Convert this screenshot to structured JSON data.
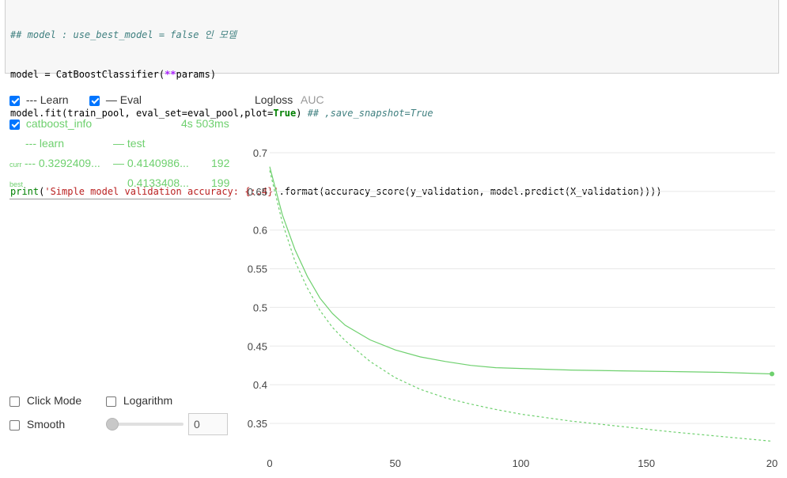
{
  "code": {
    "line1_comment": "## model : use_best_model = false 인 모델",
    "line2_a": "model = CatBoostClassifier(",
    "line2_op": "**",
    "line2_b": "params)",
    "line3_a": "model.fit(train_pool, eval_set=eval_pool,plot=",
    "line3_kw": "True",
    "line3_b": ") ",
    "line3_comment": "## ,save_snapshot=True",
    "line5_fn": "print",
    "line5_str": "'Simple model validation accuracy: {:.4}'",
    "line5_rest": ".format(accuracy_score(y_validation, model.predict(X_validation))))"
  },
  "legend": {
    "learn_label": "--- Learn",
    "eval_label": "— Eval",
    "learn_checked": true,
    "eval_checked": true
  },
  "run": {
    "name": "catboost_info",
    "time": "4s 503ms",
    "checked": true,
    "learn_header": "--- learn",
    "test_header": "— test",
    "curr_label": "curr",
    "curr_learn": "--- 0.3292409...",
    "curr_test": "— 0.4140986...",
    "curr_iter": "192",
    "best_label": "best",
    "best_test": "0.4133408...",
    "best_iter": "199"
  },
  "controls": {
    "click_mode": "Click Mode",
    "logarithm": "Logarithm",
    "smooth": "Smooth",
    "smooth_value": "0"
  },
  "tabs": {
    "logloss": "Logloss",
    "auc": "AUC"
  },
  "colors": {
    "series": "#6ed06e",
    "grid": "#e8e8e8"
  },
  "chart_data": {
    "type": "line",
    "title": "",
    "xlabel": "",
    "ylabel": "",
    "xlim": [
      0,
      200
    ],
    "ylim": [
      0.325,
      0.71
    ],
    "x_ticks": [
      0,
      50,
      100,
      150,
      "20"
    ],
    "y_ticks": [
      0.7,
      0.65,
      0.6,
      0.55,
      0.5,
      0.45,
      0.4,
      0.35
    ],
    "y_tick_labels": [
      "0.7",
      "0.65",
      "0.6",
      "0.55",
      "0.5",
      "0.45",
      "0.4",
      "0.35"
    ],
    "grid": true,
    "series": [
      {
        "name": "test",
        "style": "solid",
        "x": [
          0,
          5,
          10,
          15,
          20,
          25,
          30,
          40,
          50,
          60,
          70,
          80,
          90,
          100,
          120,
          140,
          160,
          180,
          200
        ],
        "y": [
          0.682,
          0.62,
          0.575,
          0.54,
          0.512,
          0.492,
          0.477,
          0.458,
          0.445,
          0.436,
          0.43,
          0.425,
          0.422,
          0.421,
          0.419,
          0.418,
          0.417,
          0.416,
          0.414
        ]
      },
      {
        "name": "learn",
        "style": "dashed",
        "x": [
          0,
          5,
          10,
          15,
          20,
          25,
          30,
          40,
          50,
          60,
          70,
          80,
          90,
          100,
          120,
          140,
          160,
          180,
          200
        ],
        "y": [
          0.677,
          0.61,
          0.56,
          0.525,
          0.496,
          0.474,
          0.457,
          0.43,
          0.409,
          0.394,
          0.383,
          0.375,
          0.368,
          0.362,
          0.353,
          0.346,
          0.339,
          0.333,
          0.327
        ]
      }
    ],
    "end_marker": {
      "x": 200,
      "y": 0.414
    }
  }
}
